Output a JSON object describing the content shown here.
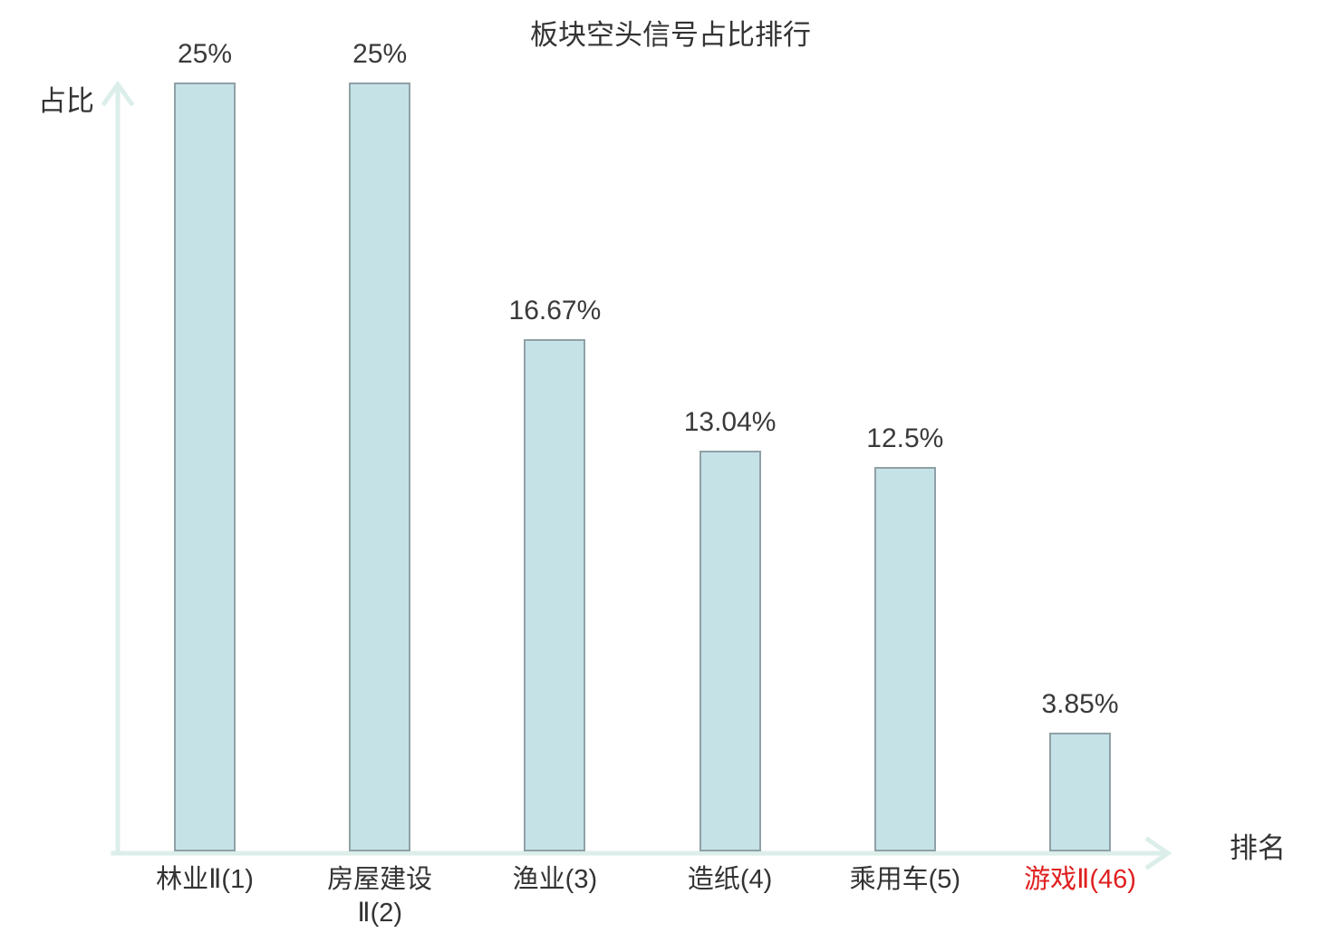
{
  "chart_data": {
    "type": "bar",
    "title": "板块空头信号占比排行",
    "xlabel": "排名",
    "ylabel": "占比",
    "categories": [
      "林业Ⅱ(1)",
      "房屋建设Ⅱ(2)",
      "渔业(3)",
      "造纸(4)",
      "乘用车(5)",
      "游戏Ⅱ(46)"
    ],
    "values": [
      25,
      25,
      16.67,
      13.04,
      12.5,
      3.85
    ],
    "value_labels": [
      "25%",
      "25%",
      "16.67%",
      "13.04%",
      "12.5%",
      "3.85%"
    ],
    "ylim": [
      0,
      25
    ],
    "grid": false,
    "legend": false,
    "highlighted_category_index": 5,
    "colors": {
      "bar_fill": "#c5e2e7",
      "bar_border": "#90a1a6",
      "axis": "#dceeea",
      "label_text": "#3a3a3a",
      "category_text": "#333333",
      "highlight_text": "#e02020"
    }
  }
}
